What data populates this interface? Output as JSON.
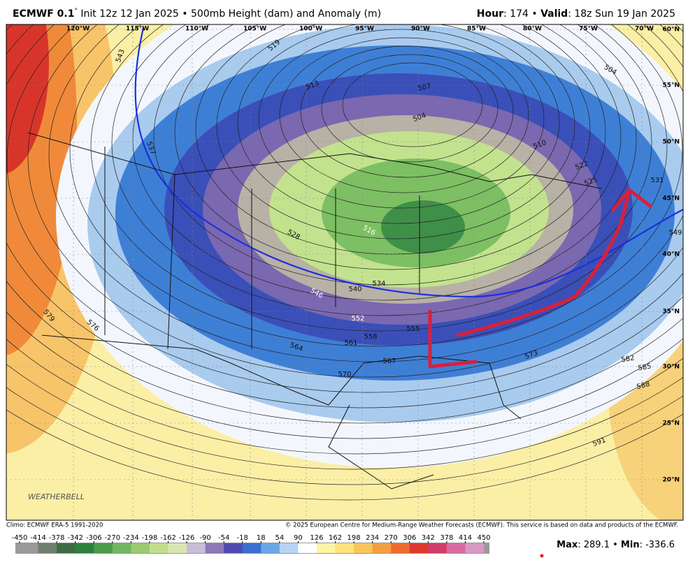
{
  "header": {
    "model": "ECMWF 0.1",
    "degree": "°",
    "init": "Init 12z 12 Jan 2025",
    "separator": "•",
    "product": "500mb Height (dam) and Anomaly (m)",
    "hour_label": "Hour",
    "hour": ": 174",
    "valid_label": "Valid",
    "valid": ": 18z Sun 19 Jan 2025"
  },
  "longitudes": [
    "120°W",
    "115°W",
    "110°W",
    "105°W",
    "100°W",
    "95°W",
    "90°W",
    "85°W",
    "80°W",
    "75°W",
    "70°W"
  ],
  "latitudes": [
    "60°N",
    "55°N",
    "50°N",
    "45°N",
    "40°N",
    "35°N",
    "30°N",
    "25°N",
    "20°N"
  ],
  "contour_labels": [
    "543",
    "537",
    "519",
    "513",
    "507",
    "504",
    "510",
    "522",
    "525",
    "531",
    "504",
    "549",
    "528",
    "516",
    "534",
    "540",
    "546",
    "552",
    "555",
    "558",
    "561",
    "564",
    "567",
    "570",
    "573",
    "576",
    "579",
    "582",
    "585",
    "588",
    "591"
  ],
  "logo": "WEATHERBELL",
  "footer": {
    "climo": "Climo: ECMWF ERA-5 1991-2020",
    "copyright": "© 2025 European Centre for Medium-Range Weather Forecasts (ECMWF). This service is based on data and products of the ECMWF."
  },
  "colorbar_ticks": [
    -450,
    -414,
    -378,
    -342,
    -306,
    -270,
    -234,
    -198,
    -162,
    -126,
    -90,
    -54,
    -18,
    18,
    54,
    90,
    126,
    162,
    198,
    234,
    270,
    306,
    342,
    378,
    414,
    450
  ],
  "stats": {
    "max_label": "Max",
    "max": ": 289.1",
    "separator": " • ",
    "min_label": "Min",
    "min": ": -336.6"
  }
}
